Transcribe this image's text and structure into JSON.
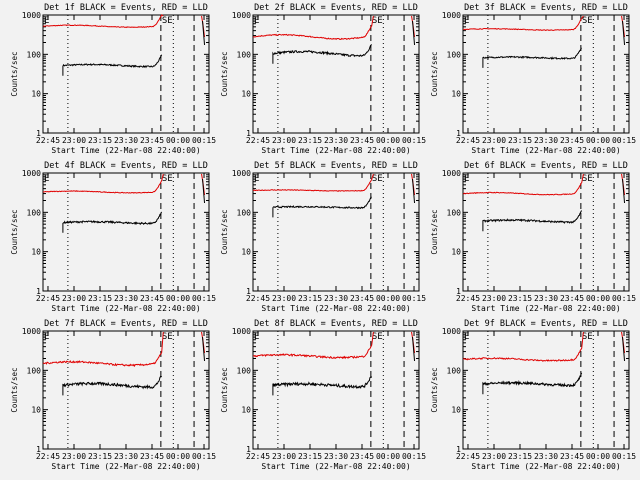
{
  "chart_data": [
    {
      "type": "line",
      "title": "Det 1f BLACK = Events, RED = LLD",
      "events_level": 52,
      "lld_level": 520,
      "events_noise": 0.04,
      "lld_noise": 0.02,
      "bump": 0.06
    },
    {
      "type": "line",
      "title": "Det 2f BLACK = Events, RED = LLD",
      "events_level": 105,
      "lld_level": 280,
      "events_noise": 0.06,
      "lld_noise": 0.03,
      "bump": 0.12
    },
    {
      "type": "line",
      "title": "Det 3f BLACK = Events, RED = LLD",
      "events_level": 82,
      "lld_level": 430,
      "events_noise": 0.04,
      "lld_noise": 0.02,
      "bump": 0.04
    },
    {
      "type": "line",
      "title": "Det 4f BLACK = Events, RED = LLD",
      "events_level": 55,
      "lld_level": 330,
      "events_noise": 0.05,
      "lld_noise": 0.02,
      "bump": 0.05
    },
    {
      "type": "line",
      "title": "Det 5f BLACK = Events, RED = LLD",
      "events_level": 135,
      "lld_level": 360,
      "events_noise": 0.04,
      "lld_noise": 0.02,
      "bump": 0.03
    },
    {
      "type": "line",
      "title": "Det 6f BLACK = Events, RED = LLD",
      "events_level": 60,
      "lld_level": 300,
      "events_noise": 0.05,
      "lld_noise": 0.02,
      "bump": 0.06
    },
    {
      "type": "line",
      "title": "Det 7f BLACK = Events, RED = LLD",
      "events_level": 42,
      "lld_level": 150,
      "events_noise": 0.08,
      "lld_noise": 0.05,
      "bump": 0.1
    },
    {
      "type": "line",
      "title": "Det 8f BLACK = Events, RED = LLD",
      "events_level": 42,
      "lld_level": 230,
      "events_noise": 0.08,
      "lld_noise": 0.05,
      "bump": 0.08
    },
    {
      "type": "line",
      "title": "Det 9f BLACK = Events, RED = LLD",
      "events_level": 45,
      "lld_level": 190,
      "events_noise": 0.07,
      "lld_noise": 0.04,
      "bump": 0.07
    }
  ],
  "shared": {
    "xlabel": "Start Time (22-Mar-08 22:40:00)",
    "ylabel": "Counts/sec",
    "x_ticks": [
      "22:45",
      "23:00",
      "23:15",
      "23:30",
      "23:45",
      "00:00",
      "00:15"
    ],
    "y_ticks": [
      "1",
      "10",
      "100",
      "1000"
    ],
    "ylim": [
      1,
      1000
    ],
    "y_scale": "log",
    "markers": {
      "left": "E",
      "right": "SE"
    },
    "colors": {
      "events": "#000000",
      "lld": "#e00000",
      "background": "#f2f2f2"
    }
  }
}
